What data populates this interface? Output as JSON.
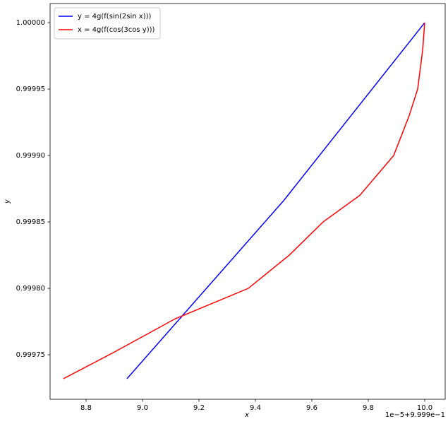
{
  "chart_data": {
    "type": "line",
    "xlabel": "x",
    "ylabel": "y",
    "x_offset_label": "1e−5+9.999e−1",
    "xlim": [
      8.6725,
      10.0725
    ],
    "ylim": [
      0.9997165,
      1.0000144
    ],
    "xticks": [
      8.8,
      {
        "value": 9,
        "label": "9.0"
      },
      9.2,
      9.4,
      9.6,
      9.8,
      {
        "value": 10,
        "label": "10.0"
      }
    ],
    "yticks": [
      0.99975,
      {
        "value": 0.9998,
        "label": "0.99980"
      },
      0.99985,
      {
        "value": 0.9999,
        "label": "0.99990"
      },
      0.99995,
      {
        "value": 1,
        "label": "1.00000"
      }
    ],
    "grid": false,
    "legend": "upper left",
    "series": [
      {
        "name": "y = 4g(f(sin(2sin x)))",
        "color": "#0000ff",
        "x": [
          8.945,
          9.5,
          10.0
        ],
        "values": [
          0.999732,
          0.999866,
          1.0
        ]
      },
      {
        "name": "x = 4g(f(cos(3cos y)))",
        "color": "#ff0000",
        "x": [
          8.72,
          8.9,
          9.115,
          9.375,
          9.52,
          9.64,
          9.77,
          9.89,
          9.945,
          9.975,
          9.993,
          10.0
        ],
        "values": [
          0.999732,
          0.999752,
          0.999777,
          0.9998,
          0.999825,
          0.99985,
          0.99987,
          0.9999,
          0.99993,
          0.99995,
          0.99998,
          1.0
        ]
      }
    ]
  }
}
